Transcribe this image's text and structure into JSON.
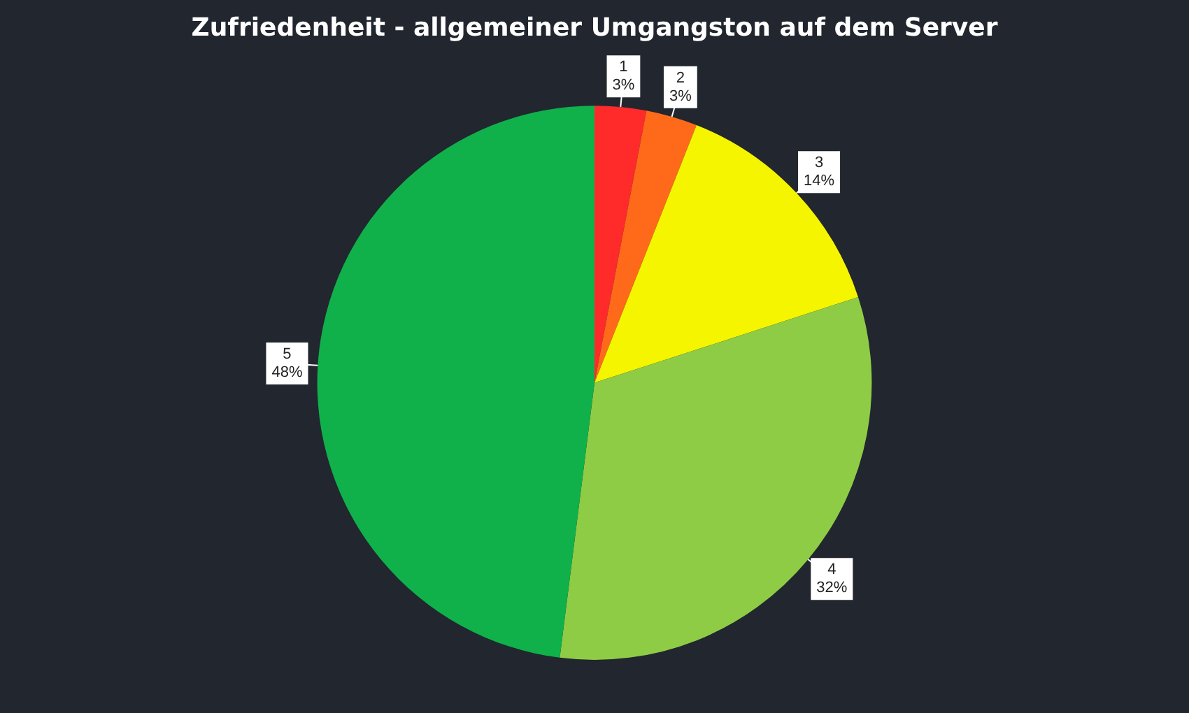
{
  "chart_data": {
    "type": "pie",
    "title": "Zufriedenheit - allgemeiner Umgangston auf dem Server",
    "categories": [
      "1",
      "2",
      "3",
      "4",
      "5"
    ],
    "values": [
      3,
      3,
      14,
      32,
      48
    ],
    "colors": [
      "#ff2a2a",
      "#ff6a1a",
      "#f5f500",
      "#8fcc45",
      "#10b14a"
    ],
    "value_labels": [
      "3%",
      "3%",
      "14%",
      "32%",
      "48%"
    ],
    "legend": false
  }
}
